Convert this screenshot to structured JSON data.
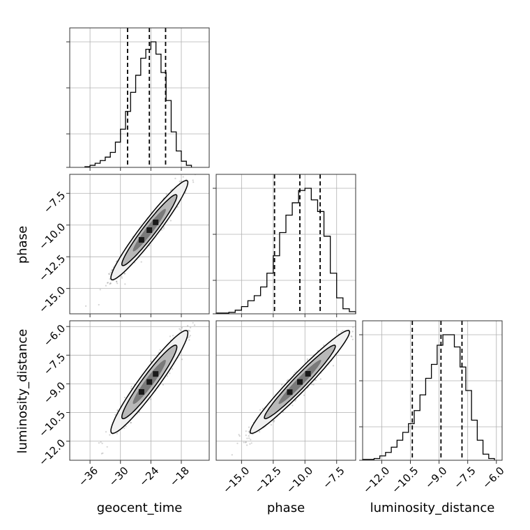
{
  "chart_data": {
    "type": "corner",
    "parameters": [
      "geocent_time",
      "phase",
      "luminosity_distance"
    ],
    "axis_labels": {
      "geocent_time": "geocent_time",
      "phase": "phase",
      "luminosity_distance": "luminosity_distance"
    },
    "ranges": {
      "geocent_time": [
        -40.0,
        -12.5
      ],
      "phase": [
        -17.0,
        -6.0
      ],
      "luminosity_distance": [
        -13.0,
        -5.7
      ]
    },
    "ticks": {
      "geocent_time": [
        -36,
        -30,
        -24,
        -18
      ],
      "phase": [
        -15.0,
        -12.5,
        -10.0,
        -7.5
      ],
      "luminosity_distance": [
        -12.0,
        -10.5,
        -9.0,
        -7.5,
        -6.0
      ]
    },
    "tick_labels": {
      "geocent_time": [
        "−36",
        "−30",
        "−24",
        "−18"
      ],
      "phase": [
        "−15.0",
        "−12.5",
        "−10.0",
        "−7.5"
      ],
      "luminosity_distance": [
        "−12.0",
        "−10.5",
        "−9.0",
        "−7.5",
        "−6.0"
      ]
    },
    "quantiles": {
      "geocent_time": [
        -28.6,
        -24.3,
        -21.1
      ],
      "phase": [
        -12.4,
        -10.4,
        -8.8
      ],
      "luminosity_distance": [
        -10.4,
        -8.9,
        -7.8
      ]
    },
    "histograms": {
      "geocent_time": {
        "bin_edges": [
          -37.0,
          -36.0,
          -35.0,
          -34.0,
          -33.0,
          -32.0,
          -31.0,
          -30.0,
          -29.0,
          -28.0,
          -27.0,
          -26.0,
          -25.0,
          -24.0,
          -23.0,
          -22.0,
          -21.0,
          -20.0,
          -19.0,
          -18.0,
          -17.0,
          -16.0
        ],
        "counts": [
          1,
          3,
          6,
          10,
          15,
          22,
          37,
          56,
          82,
          110,
          135,
          160,
          173,
          184,
          166,
          139,
          98,
          52,
          24,
          9,
          3
        ]
      },
      "phase": {
        "bin_edges": [
          -17.0,
          -16.5,
          -16.0,
          -15.5,
          -15.0,
          -14.5,
          -14.0,
          -13.5,
          -13.0,
          -12.5,
          -12.0,
          -11.5,
          -11.0,
          -10.5,
          -10.0,
          -9.5,
          -9.0,
          -8.5,
          -8.0,
          -7.5,
          -7.0,
          -6.5,
          -6.0
        ],
        "counts": [
          1,
          1,
          2,
          5,
          10,
          18,
          25,
          37,
          56,
          80,
          112,
          136,
          153,
          170,
          173,
          157,
          141,
          107,
          56,
          22,
          7,
          3
        ]
      },
      "luminosity_distance": {
        "bin_edges": [
          -13.0,
          -12.7,
          -12.4,
          -12.1,
          -11.8,
          -11.5,
          -11.2,
          -10.9,
          -10.6,
          -10.3,
          -10.0,
          -9.7,
          -9.4,
          -9.1,
          -8.8,
          -8.5,
          -8.2,
          -7.9,
          -7.6,
          -7.3,
          -7.0,
          -6.7,
          -6.4,
          -6.1
        ],
        "counts": [
          1,
          1,
          2,
          5,
          9,
          15,
          23,
          32,
          42,
          57,
          75,
          94,
          110,
          132,
          144,
          144,
          130,
          107,
          80,
          46,
          23,
          7,
          2
        ]
      }
    },
    "pairs": [
      {
        "x": "geocent_time",
        "y": "phase",
        "correlation": 0.96,
        "mean": [
          -24.3,
          -10.4
        ],
        "std": [
          3.1,
          1.6
        ]
      },
      {
        "x": "geocent_time",
        "y": "luminosity_distance",
        "correlation": 0.95,
        "mean": [
          -24.3,
          -8.9
        ],
        "std": [
          3.1,
          1.1
        ]
      },
      {
        "x": "phase",
        "y": "luminosity_distance",
        "correlation": 0.97,
        "mean": [
          -10.4,
          -8.9
        ],
        "std": [
          1.6,
          1.1
        ]
      }
    ],
    "grid": true,
    "colors": {
      "line": "#000000",
      "scatter": "#808080",
      "grid": "#b0b0b0"
    }
  }
}
